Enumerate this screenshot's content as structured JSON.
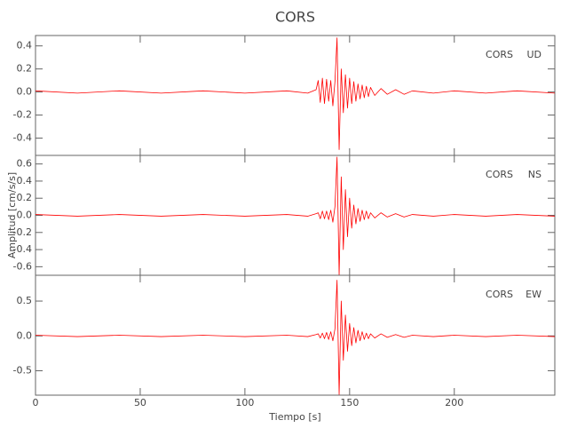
{
  "chart_data": [
    {
      "type": "line",
      "title": "CORS",
      "station": "CORS",
      "component": "UD",
      "color": "#ff0000",
      "xlim": [
        0,
        248
      ],
      "xticks": [
        0,
        50,
        100,
        150,
        200
      ],
      "ylim": [
        -0.55,
        0.49
      ],
      "yticks": [
        -0.4,
        -0.2,
        {
          "value": 0,
          "label": "0.0"
        },
        0.2,
        0.4
      ],
      "x": [
        0,
        20,
        40,
        60,
        80,
        100,
        120,
        130,
        134,
        135,
        136,
        137,
        138,
        139,
        140,
        141,
        142,
        143,
        144,
        145,
        146,
        147,
        148,
        149,
        150,
        151,
        152,
        153,
        154,
        155,
        156,
        157,
        158,
        159,
        160,
        162,
        165,
        168,
        172,
        176,
        180,
        190,
        200,
        215,
        230,
        248
      ],
      "values": [
        0.01,
        -0.01,
        0.01,
        -0.01,
        0.01,
        -0.01,
        0.01,
        -0.01,
        0.02,
        0.1,
        -0.09,
        0.12,
        -0.1,
        0.11,
        -0.08,
        0.1,
        -0.12,
        0.09,
        0.47,
        -0.5,
        0.2,
        -0.18,
        0.15,
        -0.14,
        0.12,
        -0.1,
        0.09,
        -0.08,
        0.07,
        -0.06,
        0.06,
        -0.05,
        0.05,
        -0.04,
        0.04,
        -0.03,
        0.03,
        -0.02,
        0.02,
        -0.02,
        0.01,
        -0.01,
        0.01,
        -0.01,
        0.01,
        -0.01
      ]
    },
    {
      "type": "line",
      "ylabel": "Amplitud [cm/s/s]",
      "station": "CORS",
      "component": "NS",
      "color": "#ff0000",
      "xlim": [
        0,
        248
      ],
      "xticks": [
        0,
        50,
        100,
        150,
        200
      ],
      "ylim": [
        -0.7,
        0.7
      ],
      "yticks": [
        -0.6,
        -0.4,
        -0.2,
        {
          "value": 0,
          "label": "0.0"
        },
        0.2,
        0.4,
        0.6
      ],
      "x": [
        0,
        20,
        40,
        60,
        80,
        100,
        120,
        130,
        134,
        135,
        136,
        137,
        138,
        139,
        140,
        141,
        142,
        143,
        144,
        145,
        146,
        147,
        148,
        149,
        150,
        151,
        152,
        153,
        154,
        155,
        156,
        157,
        158,
        159,
        160,
        162,
        165,
        168,
        172,
        176,
        180,
        190,
        200,
        215,
        230,
        248
      ],
      "values": [
        0.01,
        -0.01,
        0.01,
        -0.01,
        0.01,
        -0.01,
        0.01,
        -0.01,
        0.02,
        0.03,
        -0.04,
        0.05,
        -0.04,
        0.05,
        -0.05,
        0.06,
        -0.08,
        0.1,
        0.68,
        -0.7,
        0.45,
        -0.4,
        0.3,
        -0.25,
        0.2,
        -0.15,
        0.12,
        -0.1,
        0.08,
        -0.07,
        0.06,
        -0.05,
        0.05,
        -0.04,
        0.03,
        -0.03,
        0.03,
        -0.02,
        0.02,
        -0.02,
        0.01,
        -0.01,
        0.01,
        -0.01,
        0.01,
        -0.01
      ]
    },
    {
      "type": "line",
      "xlabel": "Tiempo [s]",
      "station": "CORS",
      "component": "EW",
      "color": "#ff0000",
      "xlim": [
        0,
        248
      ],
      "xticks": [
        0,
        50,
        100,
        150,
        200
      ],
      "ylim": [
        -0.85,
        0.87
      ],
      "yticks": [
        -0.5,
        {
          "value": 0,
          "label": "0.0"
        },
        0.5
      ],
      "x": [
        0,
        20,
        40,
        60,
        80,
        100,
        120,
        130,
        134,
        135,
        136,
        137,
        138,
        139,
        140,
        141,
        142,
        143,
        144,
        145,
        146,
        147,
        148,
        149,
        150,
        151,
        152,
        153,
        154,
        155,
        156,
        157,
        158,
        159,
        160,
        162,
        165,
        168,
        172,
        176,
        180,
        190,
        200,
        215,
        230,
        248
      ],
      "values": [
        0.01,
        -0.01,
        0.01,
        -0.01,
        0.01,
        -0.01,
        0.01,
        -0.01,
        0.02,
        0.03,
        -0.03,
        0.04,
        -0.04,
        0.05,
        -0.05,
        0.06,
        -0.07,
        0.1,
        0.8,
        -0.84,
        0.5,
        -0.35,
        0.3,
        -0.22,
        0.18,
        -0.14,
        0.12,
        -0.1,
        0.08,
        -0.07,
        0.06,
        -0.05,
        0.04,
        -0.04,
        0.03,
        -0.03,
        0.03,
        -0.02,
        0.02,
        -0.02,
        0.01,
        -0.01,
        0.01,
        -0.01,
        0.01,
        -0.01
      ]
    }
  ]
}
